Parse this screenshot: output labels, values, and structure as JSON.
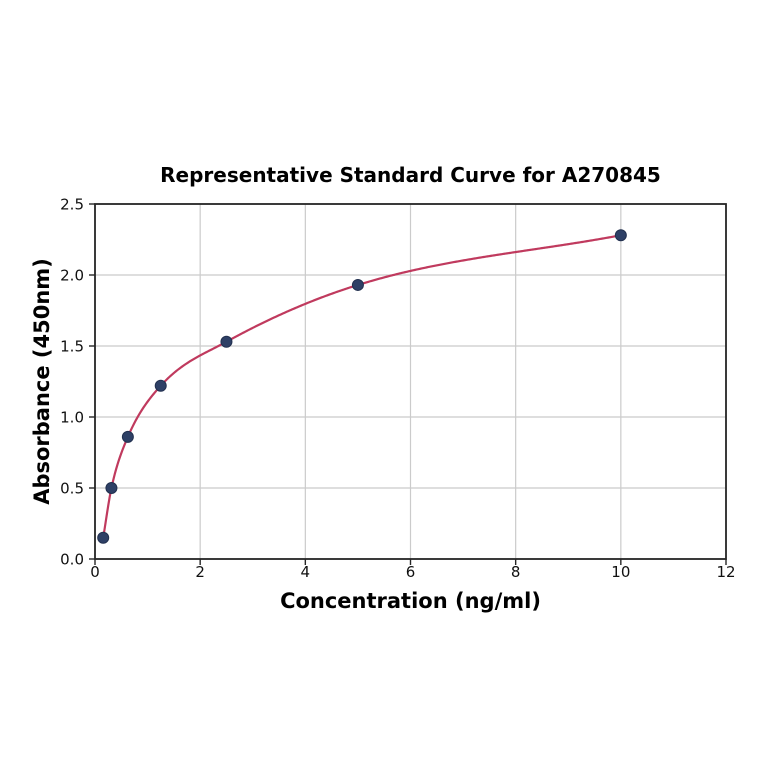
{
  "chart_data": {
    "type": "scatter",
    "title": "Representative Standard Curve for A270845",
    "xlabel": "Concentration (ng/ml)",
    "ylabel": "Absorbance (450nm)",
    "xlim": [
      0,
      12
    ],
    "ylim": [
      0,
      2.5
    ],
    "x_ticks": [
      0,
      2,
      4,
      6,
      8,
      10,
      12
    ],
    "x_tick_labels": [
      "0",
      "2",
      "4",
      "6",
      "8",
      "10",
      "12"
    ],
    "y_ticks": [
      0.0,
      0.5,
      1.0,
      1.5,
      2.0,
      2.5
    ],
    "y_tick_labels": [
      "0.0",
      "0.5",
      "1.0",
      "1.5",
      "2.0",
      "2.5"
    ],
    "grid": true,
    "legend": "none",
    "series": [
      {
        "name": "standard-points",
        "points": [
          {
            "x": 0.156,
            "y": 0.15
          },
          {
            "x": 0.3125,
            "y": 0.5
          },
          {
            "x": 0.625,
            "y": 0.86
          },
          {
            "x": 1.25,
            "y": 1.22
          },
          {
            "x": 2.5,
            "y": 1.53
          },
          {
            "x": 5.0,
            "y": 1.93
          },
          {
            "x": 10.0,
            "y": 2.28
          }
        ]
      }
    ],
    "fit_curve": "smooth monotone curve through points from x=0.156 to x=10",
    "colors": {
      "curve": "#c03a5e",
      "marker_fill": "#2e4066",
      "marker_edge": "#22304f",
      "grid": "#cbcbcb",
      "spine": "#262626",
      "tick": "#262626",
      "text": "#000000",
      "background": "#ffffff"
    }
  }
}
